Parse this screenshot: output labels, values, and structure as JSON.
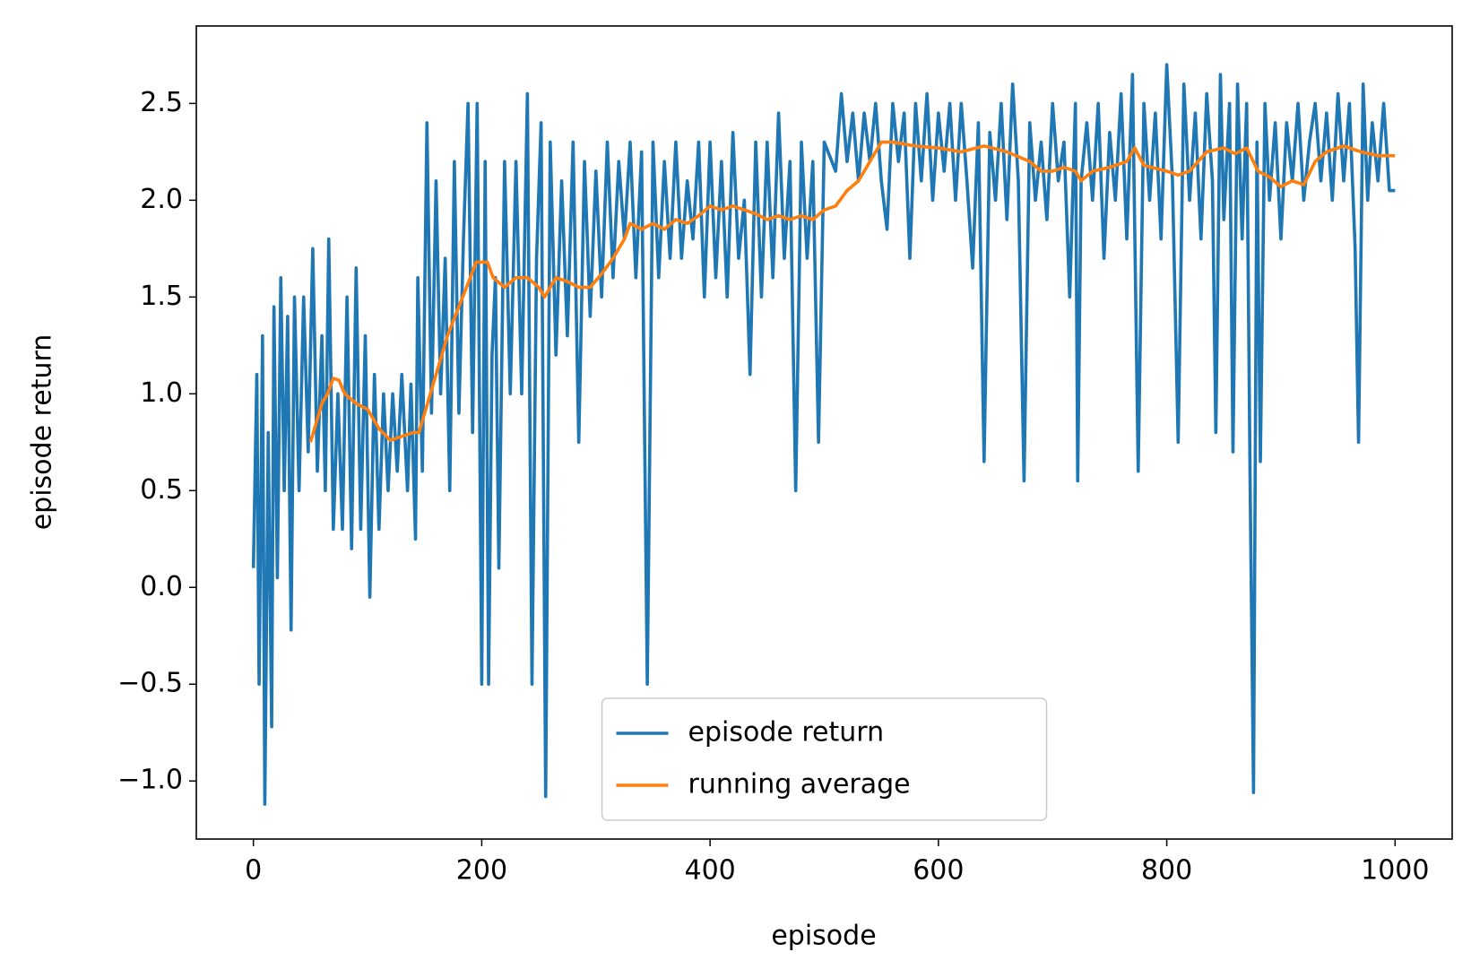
{
  "chart_data": {
    "type": "line",
    "xlabel": "episode",
    "ylabel": "episode return",
    "xlim": [
      -50,
      1050
    ],
    "ylim": [
      -1.3,
      2.9
    ],
    "xticks": [
      0,
      200,
      400,
      600,
      800,
      1000
    ],
    "yticks": [
      {
        "value": -1.0,
        "label": "−1.0"
      },
      {
        "value": -0.5,
        "label": "−0.5"
      },
      {
        "value": 0.0,
        "label": "0.0"
      },
      0.5,
      {
        "value": 1.0,
        "label": "1.0"
      },
      1.5,
      {
        "value": 2.0,
        "label": "2.0"
      },
      2.5
    ],
    "grid": false,
    "legend": "lower center",
    "series": [
      {
        "name": "episode return",
        "color": "#1f77b4",
        "x": [
          0,
          3,
          5,
          8,
          10,
          13,
          16,
          18,
          21,
          24,
          27,
          30,
          33,
          36,
          40,
          44,
          48,
          52,
          56,
          60,
          63,
          66,
          70,
          74,
          78,
          82,
          86,
          90,
          94,
          98,
          102,
          106,
          110,
          114,
          118,
          122,
          126,
          130,
          135,
          138,
          142,
          144,
          148,
          152,
          156,
          160,
          164,
          168,
          172,
          176,
          180,
          184,
          188,
          192,
          196,
          200,
          203,
          206,
          209,
          212,
          215,
          220,
          225,
          230,
          235,
          240,
          244,
          248,
          252,
          256,
          260,
          265,
          270,
          275,
          280,
          285,
          290,
          295,
          300,
          305,
          310,
          315,
          320,
          325,
          330,
          335,
          340,
          345,
          350,
          355,
          360,
          365,
          370,
          375,
          380,
          385,
          390,
          395,
          400,
          405,
          410,
          415,
          420,
          425,
          430,
          435,
          440,
          445,
          450,
          455,
          460,
          465,
          470,
          475,
          480,
          485,
          490,
          495,
          500,
          510,
          515,
          520,
          525,
          530,
          535,
          540,
          545,
          550,
          555,
          560,
          565,
          570,
          575,
          580,
          585,
          590,
          595,
          600,
          605,
          610,
          615,
          620,
          625,
          630,
          635,
          640,
          645,
          650,
          655,
          660,
          665,
          670,
          675,
          680,
          685,
          690,
          695,
          700,
          705,
          710,
          715,
          720,
          722,
          725,
          730,
          735,
          740,
          745,
          750,
          755,
          760,
          765,
          770,
          775,
          780,
          785,
          790,
          795,
          800,
          805,
          810,
          815,
          820,
          825,
          830,
          835,
          840,
          843,
          847,
          850,
          855,
          858,
          862,
          866,
          870,
          873,
          876,
          879,
          882,
          886,
          890,
          895,
          900,
          905,
          910,
          915,
          920,
          925,
          930,
          935,
          940,
          945,
          950,
          955,
          960,
          965,
          968,
          972,
          976,
          980,
          985,
          990,
          995,
          1000
        ],
        "values": [
          0.1,
          1.1,
          -0.5,
          1.3,
          -1.12,
          0.8,
          -0.72,
          1.45,
          0.05,
          1.6,
          0.5,
          1.4,
          -0.22,
          1.5,
          0.5,
          1.5,
          0.7,
          1.75,
          0.6,
          1.3,
          0.5,
          1.8,
          0.3,
          1.0,
          0.3,
          1.5,
          0.2,
          1.65,
          0.3,
          1.3,
          -0.05,
          1.1,
          0.3,
          1.0,
          0.5,
          1.0,
          0.6,
          1.1,
          0.5,
          1.05,
          0.25,
          1.6,
          0.6,
          2.4,
          0.9,
          2.1,
          1.0,
          1.7,
          0.5,
          2.2,
          0.9,
          1.8,
          2.5,
          0.8,
          2.5,
          -0.5,
          2.2,
          -0.5,
          1.2,
          1.6,
          0.1,
          2.2,
          1.0,
          2.2,
          1.0,
          2.55,
          -0.5,
          1.7,
          2.4,
          -1.08,
          2.3,
          1.2,
          2.1,
          1.3,
          2.3,
          0.75,
          2.2,
          1.4,
          2.15,
          1.5,
          2.3,
          1.6,
          2.2,
          1.8,
          2.3,
          1.6,
          2.25,
          -0.5,
          2.3,
          1.6,
          2.2,
          1.7,
          2.3,
          1.7,
          2.1,
          1.8,
          2.3,
          1.5,
          2.3,
          1.6,
          2.2,
          1.5,
          2.35,
          1.7,
          2.0,
          1.1,
          2.3,
          1.5,
          2.3,
          1.6,
          2.45,
          1.7,
          2.2,
          0.5,
          2.3,
          1.7,
          2.2,
          0.75,
          2.3,
          2.15,
          2.55,
          2.2,
          2.45,
          2.1,
          2.45,
          2.2,
          2.5,
          2.1,
          1.85,
          2.5,
          2.2,
          2.45,
          1.7,
          2.5,
          2.1,
          2.55,
          2.0,
          2.45,
          2.15,
          2.5,
          2.0,
          2.5,
          2.1,
          1.65,
          2.4,
          0.65,
          2.35,
          2.0,
          2.5,
          1.9,
          2.6,
          2.1,
          0.55,
          2.4,
          2.0,
          2.3,
          1.9,
          2.5,
          2.1,
          2.3,
          1.5,
          2.5,
          0.55,
          2.1,
          2.4,
          2.0,
          2.5,
          1.7,
          2.35,
          2.0,
          2.55,
          1.8,
          2.65,
          0.6,
          2.5,
          2.0,
          2.45,
          1.8,
          2.7,
          2.1,
          0.75,
          2.6,
          2.0,
          2.45,
          1.8,
          2.55,
          2.1,
          0.8,
          2.65,
          1.9,
          2.5,
          0.7,
          2.6,
          1.8,
          2.5,
          0.55,
          -1.06,
          2.3,
          0.65,
          2.5,
          2.0,
          2.4,
          1.8,
          2.4,
          2.1,
          2.5,
          2.0,
          2.3,
          2.5,
          2.1,
          2.45,
          2.0,
          2.55,
          2.1,
          2.5,
          1.75,
          0.75,
          2.6,
          2.0,
          2.4,
          2.1,
          2.5,
          2.05,
          2.05
        ]
      },
      {
        "name": "running average",
        "color": "#ff7f0e",
        "x": [
          50,
          55,
          60,
          65,
          70,
          75,
          80,
          90,
          100,
          110,
          120,
          130,
          140,
          145,
          150,
          160,
          170,
          180,
          190,
          195,
          205,
          210,
          220,
          230,
          240,
          250,
          255,
          265,
          275,
          285,
          295,
          305,
          315,
          325,
          330,
          340,
          350,
          360,
          370,
          380,
          390,
          400,
          410,
          420,
          430,
          440,
          450,
          460,
          470,
          480,
          490,
          500,
          510,
          520,
          530,
          540,
          550,
          560,
          580,
          600,
          620,
          640,
          660,
          680,
          690,
          700,
          710,
          720,
          725,
          735,
          750,
          765,
          772,
          780,
          800,
          810,
          820,
          835,
          850,
          860,
          870,
          880,
          890,
          900,
          910,
          920,
          930,
          940,
          955,
          970,
          985,
          1000
        ],
        "values": [
          0.75,
          0.85,
          0.95,
          1.0,
          1.08,
          1.07,
          1.0,
          0.95,
          0.92,
          0.82,
          0.76,
          0.78,
          0.8,
          0.8,
          0.9,
          1.1,
          1.3,
          1.45,
          1.6,
          1.68,
          1.68,
          1.6,
          1.55,
          1.6,
          1.6,
          1.55,
          1.5,
          1.6,
          1.58,
          1.55,
          1.55,
          1.62,
          1.7,
          1.8,
          1.88,
          1.85,
          1.88,
          1.85,
          1.9,
          1.88,
          1.92,
          1.97,
          1.95,
          1.97,
          1.95,
          1.93,
          1.9,
          1.92,
          1.9,
          1.92,
          1.9,
          1.95,
          1.97,
          2.05,
          2.1,
          2.2,
          2.3,
          2.3,
          2.28,
          2.27,
          2.25,
          2.28,
          2.25,
          2.2,
          2.15,
          2.15,
          2.17,
          2.15,
          2.1,
          2.15,
          2.17,
          2.2,
          2.27,
          2.18,
          2.15,
          2.13,
          2.15,
          2.25,
          2.27,
          2.24,
          2.27,
          2.15,
          2.12,
          2.07,
          2.1,
          2.08,
          2.2,
          2.25,
          2.28,
          2.25,
          2.23,
          2.23
        ]
      }
    ]
  }
}
